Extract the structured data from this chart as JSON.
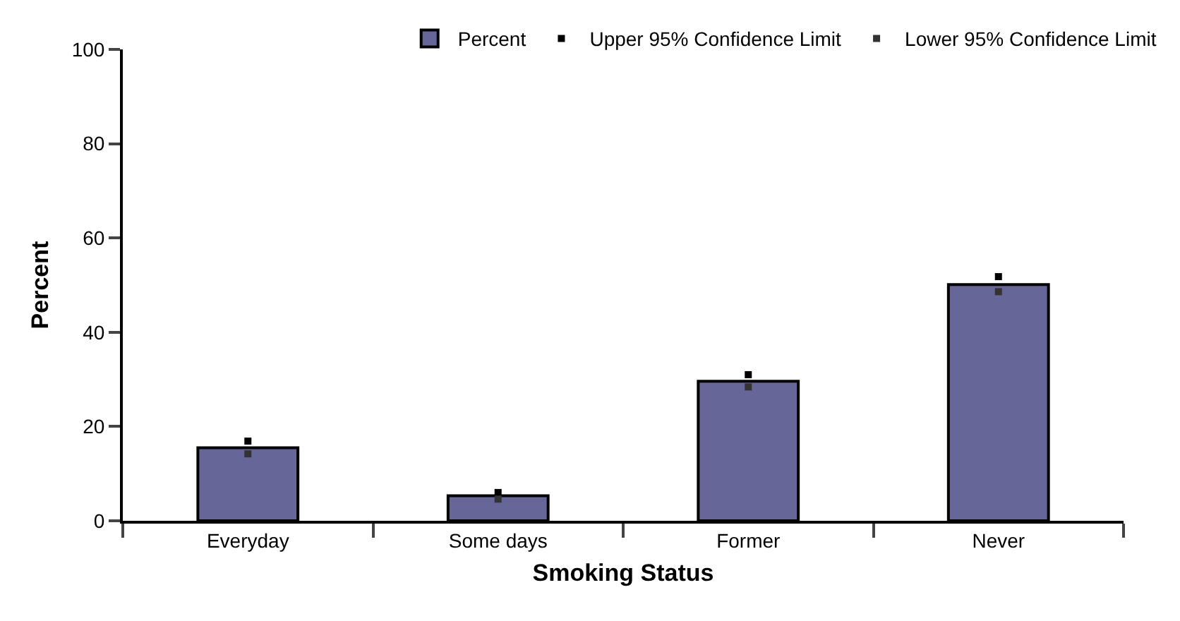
{
  "chart_data": {
    "type": "bar",
    "xlabel": "Smoking Status",
    "ylabel": "Percent",
    "categories": [
      "Everyday",
      "Some days",
      "Former",
      "Never"
    ],
    "series": [
      {
        "name": "Percent",
        "color": "#666699",
        "values": [
          15.5,
          5.3,
          29.6,
          50.1
        ]
      },
      {
        "name": "Upper 95% Confidence Limit",
        "type": "scatter",
        "color": "#000000",
        "values": [
          16.9,
          6.0,
          31.0,
          51.8
        ]
      },
      {
        "name": "Lower 95% Confidence Limit",
        "type": "scatter",
        "color": "#333333",
        "values": [
          14.2,
          4.6,
          28.4,
          48.6
        ]
      }
    ],
    "ylim": [
      0,
      100
    ],
    "yticks": [
      0,
      20,
      40,
      60,
      80,
      100
    ],
    "grid": false,
    "legend": "top right",
    "marker": "square"
  }
}
